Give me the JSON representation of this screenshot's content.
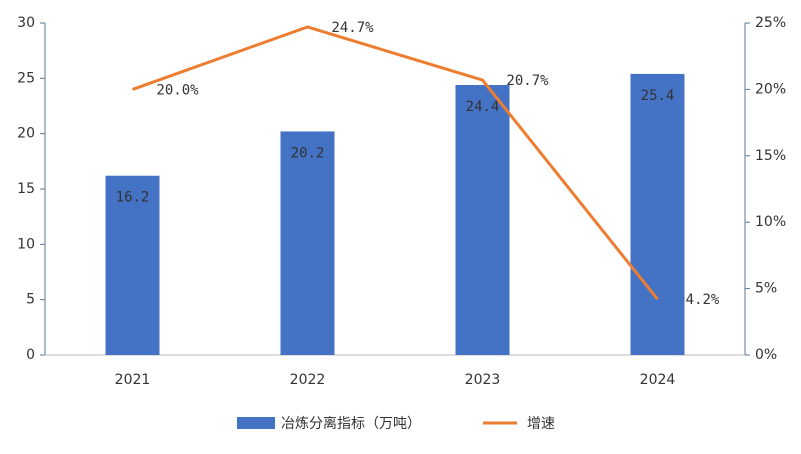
{
  "chart_data": {
    "type": "combo",
    "categories": [
      "2021",
      "2022",
      "2023",
      "2024"
    ],
    "series": [
      {
        "name": "冶炼分离指标（万吨）",
        "type": "bar",
        "color": "#4472c4",
        "values": [
          16.2,
          20.2,
          24.4,
          25.4
        ]
      },
      {
        "name": "增速",
        "type": "line",
        "axis": "y2",
        "color": "#ed7d31",
        "values": [
          20.0,
          24.7,
          20.7,
          4.2
        ],
        "value_labels": [
          "20.0%",
          "24.7%",
          "20.7%",
          "4.2%"
        ]
      }
    ],
    "ylim": [
      0,
      30
    ],
    "yticks": [
      0,
      5,
      10,
      15,
      20,
      25,
      30
    ],
    "y2lim": [
      0,
      25
    ],
    "y2ticks": [
      {
        "value": 0,
        "label": "0%"
      },
      {
        "value": 5,
        "label": "5%"
      },
      {
        "value": 10,
        "label": "10%"
      },
      {
        "value": 15,
        "label": "15%"
      },
      {
        "value": 20,
        "label": "20%"
      },
      {
        "value": 25,
        "label": "25%"
      }
    ],
    "legend": "bottom"
  }
}
